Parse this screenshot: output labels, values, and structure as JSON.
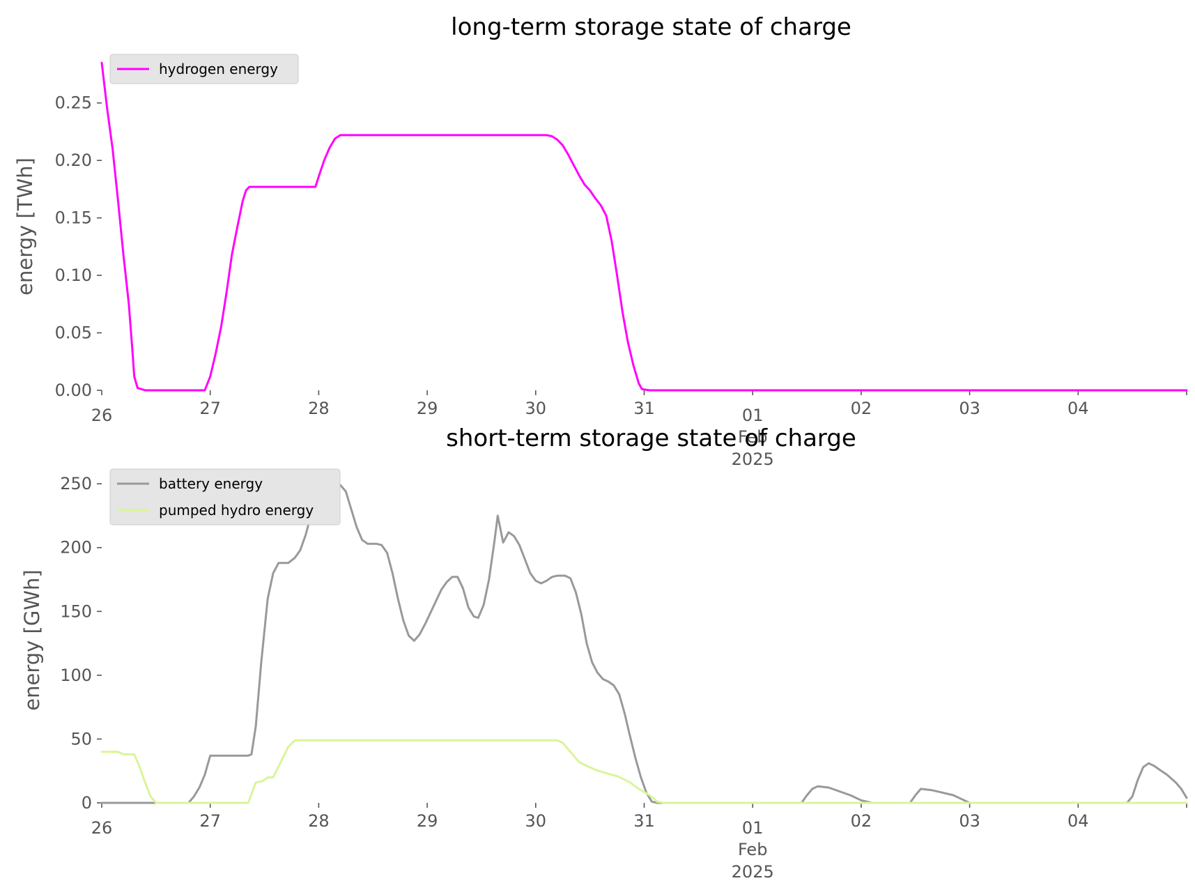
{
  "chart_data": [
    {
      "type": "line",
      "title": "long-term storage state of charge",
      "xlabel": "",
      "ylabel": "energy [TWh]",
      "x_ticks": [
        "26",
        "27",
        "28",
        "29",
        "30",
        "31",
        "01",
        "02",
        "03",
        "04"
      ],
      "x_secondary_label": [
        "Feb",
        "2025"
      ],
      "xlim": [
        "2025-01-26",
        "2025-02-05"
      ],
      "ylim": [
        0,
        0.285
      ],
      "y_ticks": [
        "0.00",
        "0.05",
        "0.10",
        "0.15",
        "0.20",
        "0.25"
      ],
      "grid": false,
      "legend_position": "top-left",
      "series": [
        {
          "name": "hydrogen energy",
          "color": "#ff00ff",
          "points": [
            [
              0.0,
              0.285
            ],
            [
              0.05,
              0.245
            ],
            [
              0.1,
              0.21
            ],
            [
              0.15,
              0.165
            ],
            [
              0.2,
              0.118
            ],
            [
              0.25,
              0.075
            ],
            [
              0.28,
              0.038
            ],
            [
              0.3,
              0.012
            ],
            [
              0.33,
              0.002
            ],
            [
              0.4,
              0.0
            ],
            [
              0.95,
              0.0
            ],
            [
              1.0,
              0.012
            ],
            [
              1.05,
              0.032
            ],
            [
              1.1,
              0.055
            ],
            [
              1.15,
              0.085
            ],
            [
              1.2,
              0.118
            ],
            [
              1.25,
              0.142
            ],
            [
              1.3,
              0.165
            ],
            [
              1.33,
              0.174
            ],
            [
              1.36,
              0.177
            ],
            [
              1.97,
              0.177
            ],
            [
              2.0,
              0.186
            ],
            [
              2.05,
              0.2
            ],
            [
              2.1,
              0.211
            ],
            [
              2.15,
              0.219
            ],
            [
              2.2,
              0.222
            ],
            [
              2.3,
              0.222
            ],
            [
              3.0,
              0.222
            ],
            [
              4.1,
              0.222
            ],
            [
              4.15,
              0.221
            ],
            [
              4.2,
              0.218
            ],
            [
              4.25,
              0.213
            ],
            [
              4.3,
              0.205
            ],
            [
              4.35,
              0.196
            ],
            [
              4.4,
              0.187
            ],
            [
              4.45,
              0.179
            ],
            [
              4.5,
              0.174
            ],
            [
              4.55,
              0.167
            ],
            [
              4.6,
              0.161
            ],
            [
              4.65,
              0.152
            ],
            [
              4.7,
              0.13
            ],
            [
              4.75,
              0.1
            ],
            [
              4.8,
              0.068
            ],
            [
              4.85,
              0.042
            ],
            [
              4.9,
              0.022
            ],
            [
              4.95,
              0.006
            ],
            [
              4.98,
              0.001
            ],
            [
              5.05,
              0.0
            ],
            [
              10.0,
              0.0
            ]
          ]
        }
      ]
    },
    {
      "type": "line",
      "title": "short-term storage state of charge",
      "xlabel": "",
      "ylabel": "energy [GWh]",
      "x_ticks": [
        "26",
        "27",
        "28",
        "29",
        "30",
        "31",
        "01",
        "02",
        "03",
        "04"
      ],
      "x_secondary_label": [
        "Feb",
        "2025"
      ],
      "xlim": [
        "2025-01-26",
        "2025-02-05"
      ],
      "ylim": [
        0,
        255
      ],
      "y_ticks": [
        "0",
        "50",
        "100",
        "150",
        "200",
        "250"
      ],
      "grid": false,
      "legend_position": "top-left",
      "series": [
        {
          "name": "battery energy",
          "color": "#999999",
          "points": [
            [
              0.0,
              0.0
            ],
            [
              0.8,
              0.0
            ],
            [
              0.85,
              5
            ],
            [
              0.9,
              12
            ],
            [
              0.95,
              22
            ],
            [
              1.0,
              37
            ],
            [
              1.3,
              37
            ],
            [
              1.35,
              37
            ],
            [
              1.38,
              38
            ],
            [
              1.42,
              60
            ],
            [
              1.47,
              110
            ],
            [
              1.53,
              160
            ],
            [
              1.58,
              180
            ],
            [
              1.63,
              188
            ],
            [
              1.72,
              188
            ],
            [
              1.78,
              192
            ],
            [
              1.83,
              198
            ],
            [
              1.88,
              210
            ],
            [
              1.93,
              226
            ],
            [
              1.97,
              240
            ],
            [
              2.0,
              249
            ],
            [
              2.2,
              249
            ],
            [
              2.25,
              244
            ],
            [
              2.3,
              230
            ],
            [
              2.35,
              216
            ],
            [
              2.4,
              206
            ],
            [
              2.45,
              203
            ],
            [
              2.53,
              203
            ],
            [
              2.58,
              202
            ],
            [
              2.63,
              196
            ],
            [
              2.68,
              180
            ],
            [
              2.73,
              160
            ],
            [
              2.78,
              143
            ],
            [
              2.83,
              131
            ],
            [
              2.88,
              127
            ],
            [
              2.93,
              132
            ],
            [
              2.98,
              140
            ],
            [
              3.03,
              149
            ],
            [
              3.08,
              158
            ],
            [
              3.13,
              167
            ],
            [
              3.18,
              173
            ],
            [
              3.23,
              177
            ],
            [
              3.28,
              177
            ],
            [
              3.33,
              168
            ],
            [
              3.38,
              153
            ],
            [
              3.43,
              146
            ],
            [
              3.47,
              145
            ],
            [
              3.52,
              155
            ],
            [
              3.57,
              175
            ],
            [
              3.62,
              205
            ],
            [
              3.65,
              225
            ],
            [
              3.7,
              204
            ],
            [
              3.75,
              212
            ],
            [
              3.8,
              209
            ],
            [
              3.85,
              202
            ],
            [
              3.9,
              191
            ],
            [
              3.95,
              180
            ],
            [
              4.0,
              174
            ],
            [
              4.05,
              172
            ],
            [
              4.1,
              174
            ],
            [
              4.15,
              177
            ],
            [
              4.2,
              178
            ],
            [
              4.27,
              178
            ],
            [
              4.32,
              176
            ],
            [
              4.37,
              165
            ],
            [
              4.42,
              148
            ],
            [
              4.47,
              125
            ],
            [
              4.52,
              110
            ],
            [
              4.57,
              102
            ],
            [
              4.62,
              97
            ],
            [
              4.67,
              95
            ],
            [
              4.72,
              92
            ],
            [
              4.77,
              85
            ],
            [
              4.82,
              70
            ],
            [
              4.87,
              52
            ],
            [
              4.92,
              35
            ],
            [
              4.97,
              20
            ],
            [
              5.02,
              8
            ],
            [
              5.07,
              1
            ],
            [
              5.12,
              0.0
            ],
            [
              6.45,
              0.0
            ],
            [
              6.5,
              6
            ],
            [
              6.55,
              11
            ],
            [
              6.6,
              13
            ],
            [
              6.7,
              12
            ],
            [
              6.8,
              9
            ],
            [
              6.9,
              6
            ],
            [
              7.0,
              2
            ],
            [
              7.1,
              0.0
            ],
            [
              7.45,
              0.0
            ],
            [
              7.5,
              6
            ],
            [
              7.55,
              11
            ],
            [
              7.65,
              10
            ],
            [
              7.75,
              8
            ],
            [
              7.85,
              6
            ],
            [
              7.9,
              4
            ],
            [
              8.0,
              0.0
            ],
            [
              9.45,
              0.0
            ],
            [
              9.5,
              5
            ],
            [
              9.55,
              18
            ],
            [
              9.6,
              28
            ],
            [
              9.65,
              31
            ],
            [
              9.7,
              29
            ],
            [
              9.75,
              26
            ],
            [
              9.82,
              22
            ],
            [
              9.9,
              16
            ],
            [
              9.95,
              11
            ],
            [
              10.0,
              4
            ]
          ]
        },
        {
          "name": "pumped hydro energy",
          "color": "#d9f599",
          "points": [
            [
              0.0,
              40
            ],
            [
              0.15,
              40
            ],
            [
              0.2,
              38
            ],
            [
              0.25,
              38
            ],
            [
              0.3,
              38
            ],
            [
              0.35,
              28
            ],
            [
              0.4,
              16
            ],
            [
              0.45,
              5
            ],
            [
              0.5,
              0.0
            ],
            [
              1.35,
              0.0
            ],
            [
              1.42,
              16
            ],
            [
              1.48,
              17
            ],
            [
              1.53,
              20
            ],
            [
              1.58,
              20
            ],
            [
              1.65,
              32
            ],
            [
              1.72,
              44
            ],
            [
              1.78,
              49
            ],
            [
              1.83,
              49
            ],
            [
              2.0,
              49
            ],
            [
              4.2,
              49
            ],
            [
              4.25,
              47
            ],
            [
              4.3,
              42
            ],
            [
              4.35,
              37
            ],
            [
              4.4,
              32
            ],
            [
              4.47,
              29
            ],
            [
              4.55,
              26
            ],
            [
              4.62,
              24
            ],
            [
              4.7,
              22
            ],
            [
              4.75,
              21
            ],
            [
              4.8,
              19
            ],
            [
              4.87,
              16
            ],
            [
              4.95,
              11
            ],
            [
              5.05,
              6
            ],
            [
              5.12,
              1
            ],
            [
              5.18,
              0.0
            ],
            [
              10.0,
              0.0
            ]
          ]
        }
      ]
    }
  ]
}
